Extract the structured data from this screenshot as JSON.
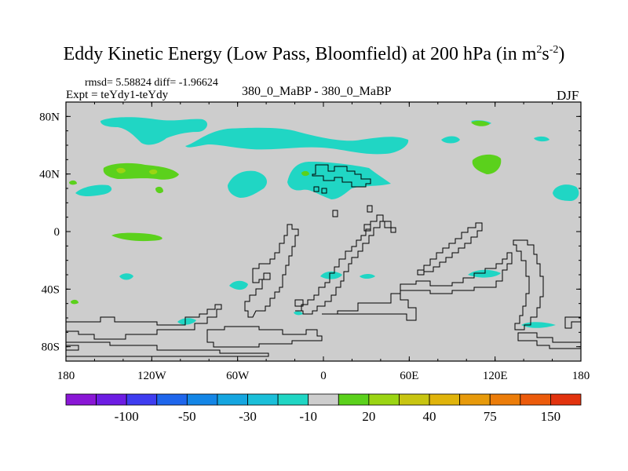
{
  "title_main": "Eddy Kinetic Energy (Low Pass, Bloomfield) at 200 hPa (in m",
  "title_sup1": "2",
  "title_mid": "s",
  "title_sup2": "-2",
  "title_end": ")",
  "stats": "rmsd= 5.58824 diff= -1.96624",
  "expt": "Expt = teYdy1-teYdy",
  "case": "380_0_MaBP - 380_0_MaBP",
  "season": "DJF",
  "chart_data": {
    "type": "contour-map",
    "title": "Eddy Kinetic Energy (Low Pass, Bloomfield) at 200 hPa (in m2s-2)",
    "xlabel": "",
    "ylabel": "",
    "xlim": [
      -180,
      180
    ],
    "ylim": [
      -90,
      90
    ],
    "x_ticks": [
      -180,
      -120,
      -60,
      0,
      60,
      120,
      180
    ],
    "x_tick_labels": [
      "180",
      "120W",
      "60W",
      "0",
      "60E",
      "120E",
      "180"
    ],
    "y_ticks": [
      80,
      40,
      0,
      -40,
      -80
    ],
    "y_tick_labels": [
      "80N",
      "40N",
      "0",
      "40S",
      "80S"
    ],
    "colorbar": {
      "bins": 17,
      "labels": [
        {
          "after_bin": 1,
          "text": "-100"
        },
        {
          "after_bin": 3,
          "text": "-50"
        },
        {
          "after_bin": 5,
          "text": "-30"
        },
        {
          "after_bin": 7,
          "text": "-10"
        },
        {
          "after_bin": 9,
          "text": "20"
        },
        {
          "after_bin": 11,
          "text": "40"
        },
        {
          "after_bin": 13,
          "text": "75"
        },
        {
          "after_bin": 15,
          "text": "150"
        }
      ],
      "colors": [
        "#8a17d6",
        "#6d1de3",
        "#3f3df0",
        "#1f66ec",
        "#1486e6",
        "#15a6e0",
        "#1bbfd9",
        "#20d6c4",
        "#cdcdcd",
        "#5bd11c",
        "#9bd513",
        "#c8c511",
        "#e0b40b",
        "#e79a0b",
        "#ec7d0a",
        "#ec5b0b",
        "#e2330e"
      ],
      "background": "#cdcdcd"
    },
    "regions": [
      {
        "level": -10,
        "lon": -155,
        "lat": 80
      },
      {
        "level": -10,
        "lon": -95,
        "lat": 78
      },
      {
        "level": -10,
        "lon": -15,
        "lat": 78
      },
      {
        "level": -10,
        "lon": 82,
        "lat": 76
      },
      {
        "level": -10,
        "lon": 96,
        "lat": 84
      },
      {
        "level": -10,
        "lon": -70,
        "lat": 40
      },
      {
        "level": -10,
        "lon": 10,
        "lat": 45
      },
      {
        "level": -10,
        "lon": 168,
        "lat": 28
      },
      {
        "level": -10,
        "lon": 35,
        "lat": -30
      },
      {
        "level": -10,
        "lon": 85,
        "lat": -30
      },
      {
        "level": -10,
        "lon": -100,
        "lat": -62
      },
      {
        "level": -10,
        "lon": 150,
        "lat": -65
      },
      {
        "level": 20,
        "lon": -148,
        "lat": 42
      },
      {
        "level": 20,
        "lon": -140,
        "lat": 0
      },
      {
        "level": 20,
        "lon": 122,
        "lat": 48
      },
      {
        "level": 20,
        "lon": 78,
        "lat": 80
      },
      {
        "level": 40,
        "lon": -148,
        "lat": 44
      }
    ]
  }
}
